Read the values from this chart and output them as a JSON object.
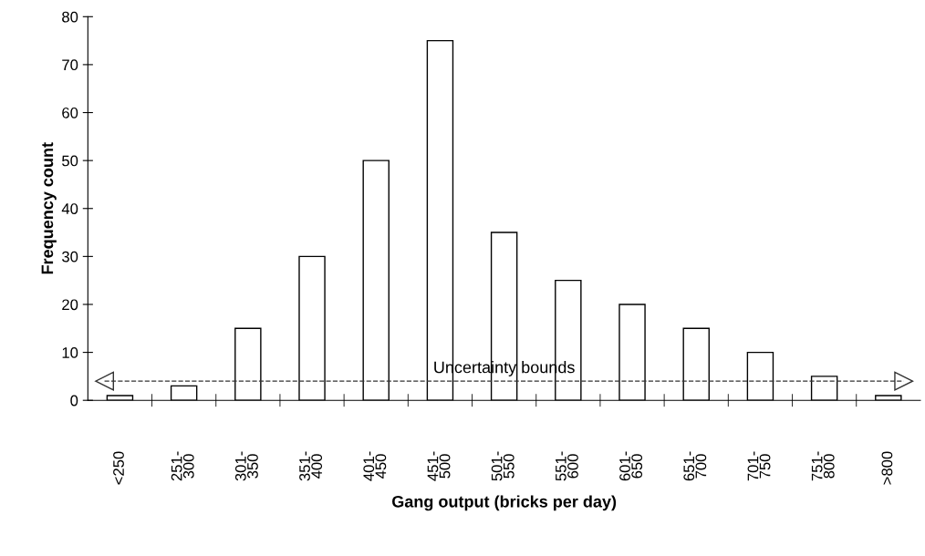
{
  "chart_data": {
    "type": "bar",
    "xlabel": "Gang output (bricks per day)",
    "ylabel": "Frequency count",
    "categories": [
      "<250",
      "251-\n300",
      "301-\n350",
      "351-\n400",
      "401-\n450",
      "451-\n500",
      "501-\n550",
      "551-\n600",
      "601-\n650",
      "651-\n700",
      "701-\n750",
      "751-\n800",
      ">800"
    ],
    "values": [
      1,
      3,
      15,
      30,
      50,
      75,
      35,
      25,
      20,
      15,
      10,
      5,
      1
    ],
    "color": "#ffffff",
    "ylim": [
      0,
      80
    ],
    "yticks": [
      0,
      10,
      20,
      30,
      40,
      50,
      60,
      70,
      80
    ],
    "ref_lines": [
      {
        "axis": "y",
        "value": 4,
        "label": "Uncertainty bounds",
        "line_style": "dashed",
        "color": "#333333"
      }
    ],
    "grid": false,
    "legend": false
  }
}
